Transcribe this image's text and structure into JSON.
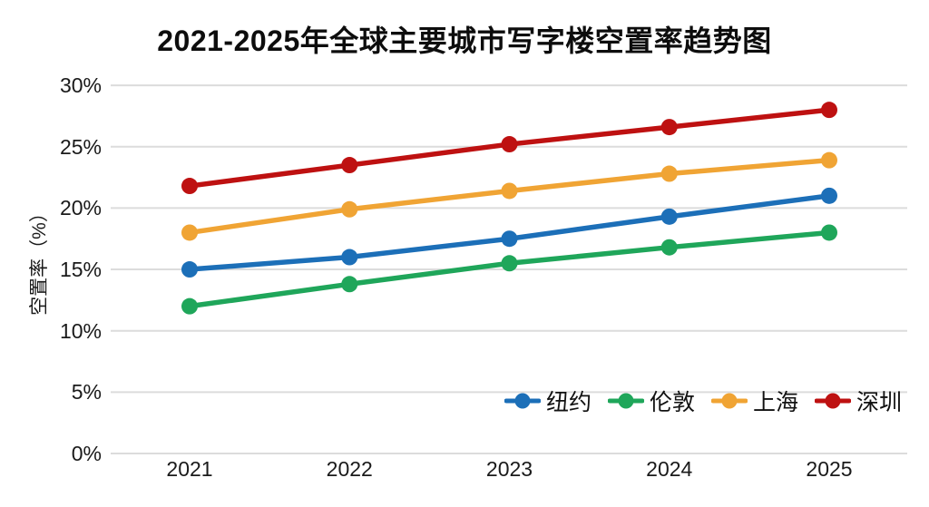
{
  "title": "2021-2025年全球主要城市写字楼空置率趋势图",
  "chart_data": {
    "type": "line",
    "title": "2021-2025年全球主要城市写字楼空置率趋势图",
    "xlabel": "",
    "ylabel": "空置率（%）",
    "categories": [
      "2021",
      "2022",
      "2023",
      "2024",
      "2025"
    ],
    "y_tick_values": [
      0,
      5,
      10,
      15,
      20,
      25,
      30
    ],
    "y_tick_labels": [
      "0%",
      "5%",
      "10%",
      "15%",
      "20%",
      "25%",
      "30%"
    ],
    "ylim": [
      0,
      30
    ],
    "grid": true,
    "legend_position": "bottom-right-inside",
    "series": [
      {
        "name": "纽约",
        "color": "#1C6FB8",
        "values": [
          15.0,
          16.0,
          17.5,
          19.3,
          21.0
        ]
      },
      {
        "name": "伦敦",
        "color": "#1FA65A",
        "values": [
          12.0,
          13.8,
          15.5,
          16.8,
          18.0
        ]
      },
      {
        "name": "上海",
        "color": "#F0A434",
        "values": [
          18.0,
          19.9,
          21.4,
          22.8,
          23.9
        ]
      },
      {
        "name": "深圳",
        "color": "#BE1111",
        "values": [
          21.8,
          23.5,
          25.2,
          26.6,
          28.0
        ]
      }
    ],
    "colors": {
      "grid": "#dcdcdc",
      "text": "#1a1a1a",
      "background": "#ffffff"
    }
  }
}
